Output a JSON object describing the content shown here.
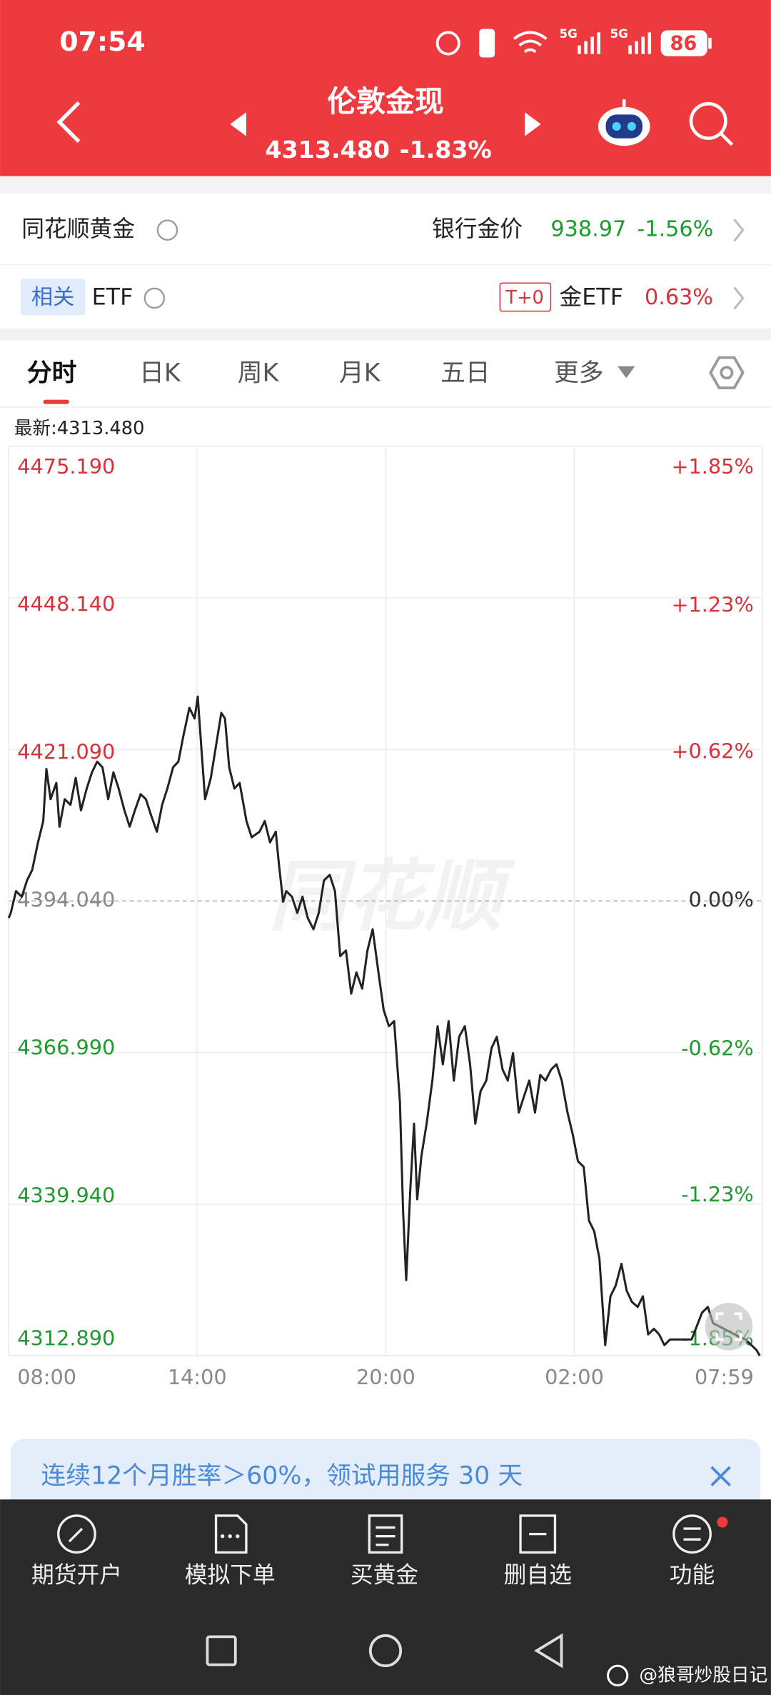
{
  "status_bar": {
    "time": "07:54",
    "signal_labels": [
      "5G",
      "5G"
    ],
    "battery": "86"
  },
  "header": {
    "title": "伦敦金现",
    "price": "4313.480",
    "change": "-1.83%"
  },
  "gold_row": {
    "name": "同花顺黄金",
    "label": "银行金价",
    "price": "938.97",
    "change": "-1.56%"
  },
  "etf_row": {
    "badge": "相关",
    "name": "ETF",
    "tag": "T+0",
    "label": "金ETF",
    "change": "0.63%"
  },
  "tabs": [
    "分时",
    "日K",
    "周K",
    "月K",
    "五日",
    "更多"
  ],
  "latest": "最新:4313.480",
  "watermark": "同花顺",
  "chart_data": {
    "type": "line",
    "color": "#222222",
    "x": [
      0,
      4,
      14,
      25,
      35,
      45,
      56,
      66,
      72,
      80,
      91,
      97,
      107,
      118,
      128,
      138,
      149,
      159,
      169,
      179,
      190,
      200,
      210,
      221,
      231,
      241,
      252,
      262,
      272,
      283,
      293,
      303,
      314,
      324,
      334,
      345,
      355,
      361,
      369,
      375,
      386,
      396,
      406,
      413,
      421,
      431,
      441,
      454,
      464,
      479,
      489,
      499,
      510,
      516,
      524,
      530,
      541,
      551,
      561,
      571,
      582,
      592,
      602,
      613,
      623,
      633,
      644,
      654,
      664,
      675,
      685,
      695,
      706,
      716,
      726,
      736,
      747,
      753,
      759,
      767,
      774,
      780,
      788,
      798,
      809,
      819,
      829,
      840,
      850,
      860,
      871,
      881,
      891,
      901,
      912,
      922,
      932,
      943,
      953,
      963,
      974,
      984,
      994,
      1005,
      1015,
      1025,
      1036,
      1046,
      1056,
      1067,
      1077,
      1087,
      1098,
      1108,
      1118,
      1128,
      1139,
      1149,
      1159,
      1170,
      1180,
      1190,
      1201,
      1211,
      1221,
      1232,
      1242,
      1252,
      1263,
      1284,
      1304,
      1324,
      1335,
      1345,
      1366,
      1386,
      1407,
      1428,
      1434
    ],
    "values": [
      4391.0,
      4391.9,
      4395.8,
      4394.8,
      4397.7,
      4399.6,
      4404.5,
      4408.3,
      4417.6,
      4412.2,
      4415.1,
      4407.3,
      4412.2,
      4411.2,
      4416.0,
      4410.2,
      4414.1,
      4417.0,
      4418.9,
      4417.9,
      4412.2,
      4417.0,
      4414.1,
      4410.2,
      4407.3,
      4410.2,
      4413.1,
      4412.2,
      4409.3,
      4406.4,
      4411.2,
      4414.1,
      4417.9,
      4418.9,
      4423.7,
      4428.5,
      4426.6,
      4430.5,
      4419.9,
      4412.2,
      4416.0,
      4421.8,
      4427.6,
      4426.6,
      4417.9,
      4414.1,
      4415.1,
      4408.3,
      4405.4,
      4406.4,
      4408.3,
      4404.5,
      4406.4,
      4400.6,
      4393.9,
      4395.8,
      4394.8,
      4391.9,
      4394.8,
      4391.0,
      4389.0,
      4391.9,
      4397.7,
      4398.7,
      4395.8,
      4384.2,
      4385.2,
      4377.5,
      4381.3,
      4378.4,
      4385.2,
      4389.0,
      4381.3,
      4374.6,
      4371.7,
      4372.6,
      4358.2,
      4338.9,
      4326.4,
      4342.8,
      4354.3,
      4340.8,
      4348.5,
      4354.3,
      4362.0,
      4371.7,
      4364.9,
      4372.6,
      4362.0,
      4369.8,
      4371.7,
      4364.9,
      4354.3,
      4360.1,
      4362.0,
      4367.8,
      4369.8,
      4364.0,
      4362.0,
      4366.9,
      4356.3,
      4359.2,
      4362.0,
      4356.3,
      4363.0,
      4362.0,
      4364.0,
      4364.9,
      4362.0,
      4356.3,
      4352.4,
      4347.6,
      4346.6,
      4337.0,
      4335.1,
      4330.2,
      4314.8,
      4323.5,
      4325.4,
      4329.3,
      4324.5,
      4322.5,
      4321.6,
      4323.5,
      4316.7,
      4317.7,
      4316.7,
      4314.8,
      4315.8,
      4315.8,
      4315.8,
      4320.6,
      4321.6,
      4318.7,
      4317.7,
      4316.7,
      4315.8,
      4313.9,
      4312.9
    ],
    "xlim": [
      0,
      1439
    ],
    "xticks": [
      {
        "value": 0,
        "label": "08:00"
      },
      {
        "value": 360,
        "label": "14:00"
      },
      {
        "value": 720,
        "label": "20:00"
      },
      {
        "value": 1080,
        "label": "02:00"
      },
      {
        "value": 1439,
        "label": "07:59"
      }
    ],
    "ylim": [
      4312.89,
      4475.19
    ],
    "yticks": [
      {
        "value": 4475.19,
        "label": "4475.190"
      },
      {
        "value": 4448.14,
        "label": "4448.140"
      },
      {
        "value": 4421.09,
        "label": "4421.090"
      },
      {
        "value": 4394.04,
        "label": "4394.040"
      },
      {
        "value": 4366.99,
        "label": "4366.990"
      },
      {
        "value": 4339.94,
        "label": "4339.940"
      },
      {
        "value": 4312.89,
        "label": "4312.890"
      }
    ],
    "y2lim": [
      -1.85,
      1.85
    ],
    "y2ticks": [
      {
        "value": 1.85,
        "label": "+1.85%"
      },
      {
        "value": 1.23,
        "label": "+1.23%"
      },
      {
        "value": 0.62,
        "label": "+0.62%"
      },
      {
        "value": 0,
        "label": "0.00%"
      },
      {
        "value": -0.62,
        "label": "-0.62%"
      },
      {
        "value": -1.23,
        "label": "-1.23%"
      },
      {
        "value": -1.85,
        "label": "-1.85%"
      }
    ],
    "grid": true
  },
  "banner": {
    "text": "连续12个月胜率＞60%，领试用服务 30 天"
  },
  "nav": [
    "期货开户",
    "模拟下单",
    "买黄金",
    "删自选",
    "功能"
  ],
  "credit": "@狼哥炒股日记"
}
